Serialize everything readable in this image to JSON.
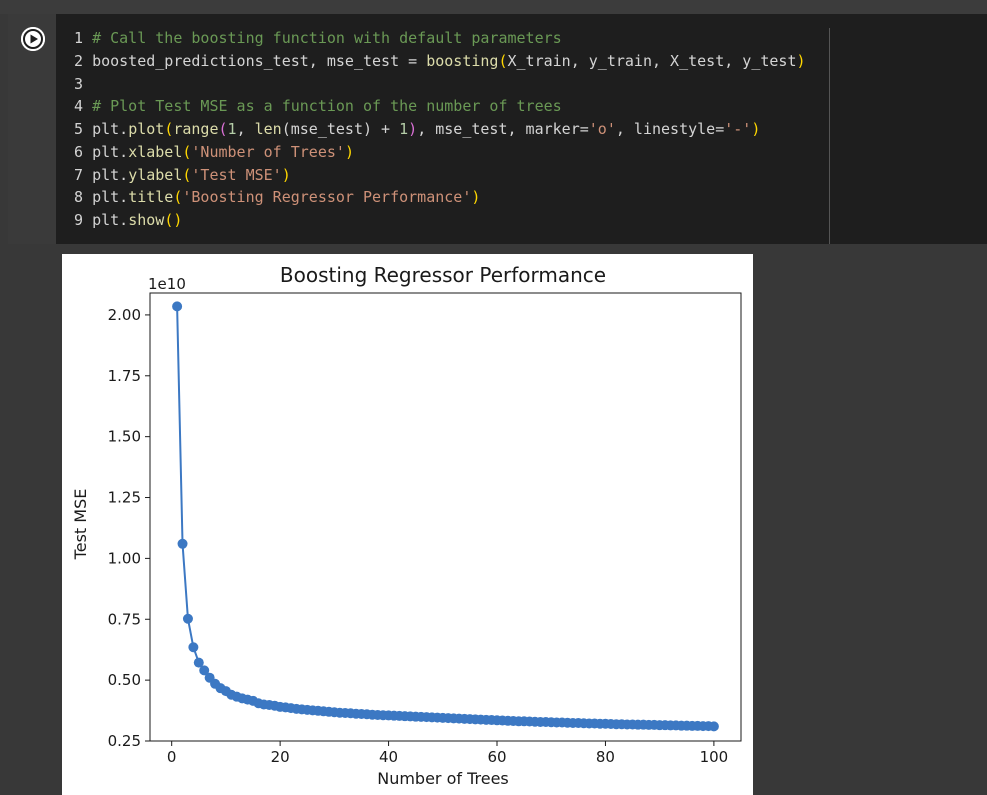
{
  "cell": {
    "run_button_label": "Run cell",
    "code_lines": [
      {
        "num": "1",
        "tokens": [
          {
            "t": "# Call the boosting function with default parameters",
            "c": "cm"
          }
        ]
      },
      {
        "num": "2",
        "tokens": [
          {
            "t": "boosted_predictions_test, mse_test = ",
            "c": ""
          },
          {
            "t": "boosting",
            "c": "fn"
          },
          {
            "t": "(",
            "c": "py"
          },
          {
            "t": "X_train, y_train, X_test, y_test",
            "c": ""
          },
          {
            "t": ")",
            "c": "py"
          }
        ]
      },
      {
        "num": "3",
        "tokens": []
      },
      {
        "num": "4",
        "tokens": [
          {
            "t": "# Plot Test MSE as a function of the number of trees",
            "c": "cm"
          }
        ]
      },
      {
        "num": "5",
        "tokens": [
          {
            "t": "plt.",
            "c": ""
          },
          {
            "t": "plot",
            "c": "fn"
          },
          {
            "t": "(",
            "c": "py"
          },
          {
            "t": "range",
            "c": "fn"
          },
          {
            "t": "(",
            "c": "pp"
          },
          {
            "t": "1",
            "c": "nu"
          },
          {
            "t": ", ",
            "c": ""
          },
          {
            "t": "len",
            "c": "fn"
          },
          {
            "t": "(mse_test)",
            "c": ""
          },
          {
            "t": " + ",
            "c": ""
          },
          {
            "t": "1",
            "c": "nu"
          },
          {
            "t": ")",
            "c": "pp"
          },
          {
            "t": ", mse_test, marker=",
            "c": ""
          },
          {
            "t": "'o'",
            "c": "st"
          },
          {
            "t": ", linestyle=",
            "c": ""
          },
          {
            "t": "'-'",
            "c": "st"
          },
          {
            "t": ")",
            "c": "py"
          }
        ]
      },
      {
        "num": "6",
        "tokens": [
          {
            "t": "plt.",
            "c": ""
          },
          {
            "t": "xlabel",
            "c": "fn"
          },
          {
            "t": "(",
            "c": "py"
          },
          {
            "t": "'Number of Trees'",
            "c": "st"
          },
          {
            "t": ")",
            "c": "py"
          }
        ]
      },
      {
        "num": "7",
        "tokens": [
          {
            "t": "plt.",
            "c": ""
          },
          {
            "t": "ylabel",
            "c": "fn"
          },
          {
            "t": "(",
            "c": "py"
          },
          {
            "t": "'Test MSE'",
            "c": "st"
          },
          {
            "t": ")",
            "c": "py"
          }
        ]
      },
      {
        "num": "8",
        "tokens": [
          {
            "t": "plt.",
            "c": ""
          },
          {
            "t": "title",
            "c": "fn"
          },
          {
            "t": "(",
            "c": "py"
          },
          {
            "t": "'Boosting Regressor Performance'",
            "c": "st"
          },
          {
            "t": ")",
            "c": "py"
          }
        ]
      },
      {
        "num": "9",
        "tokens": [
          {
            "t": "plt.",
            "c": ""
          },
          {
            "t": "show",
            "c": "fn"
          },
          {
            "t": "()",
            "c": "py"
          }
        ]
      }
    ]
  },
  "chart_data": {
    "type": "line",
    "title": "Boosting Regressor Performance",
    "xlabel": "Number of Trees",
    "ylabel": "Test MSE",
    "y_scale_label": "1e10",
    "xlim": [
      -4,
      105
    ],
    "ylim": [
      0.25,
      2.09
    ],
    "x_ticks": [
      0,
      20,
      40,
      60,
      80,
      100
    ],
    "x_tick_labels": [
      "0",
      "20",
      "40",
      "60",
      "80",
      "100"
    ],
    "y_ticks": [
      0.25,
      0.5,
      0.75,
      1.0,
      1.25,
      1.5,
      1.75,
      2.0
    ],
    "y_tick_labels": [
      "0.25",
      "0.50",
      "0.75",
      "1.00",
      "1.25",
      "1.50",
      "1.75",
      "2.00"
    ],
    "grid": false,
    "marker": "o",
    "line_color": "#3c78c3",
    "series": [
      {
        "x": [
          1,
          2,
          3,
          4,
          5,
          6,
          7,
          8,
          9,
          10,
          11,
          12,
          13,
          14,
          15,
          16,
          17,
          18,
          19,
          20,
          21,
          22,
          23,
          24,
          25,
          26,
          27,
          28,
          29,
          30,
          31,
          32,
          33,
          34,
          35,
          36,
          37,
          38,
          39,
          40,
          41,
          42,
          43,
          44,
          45,
          46,
          47,
          48,
          49,
          50,
          51,
          52,
          53,
          54,
          55,
          56,
          57,
          58,
          59,
          60,
          61,
          62,
          63,
          64,
          65,
          66,
          67,
          68,
          69,
          70,
          71,
          72,
          73,
          74,
          75,
          76,
          77,
          78,
          79,
          80,
          81,
          82,
          83,
          84,
          85,
          86,
          87,
          88,
          89,
          90,
          91,
          92,
          93,
          94,
          95,
          96,
          97,
          98,
          99,
          100
        ],
        "values": [
          2.035,
          1.06,
          0.752,
          0.635,
          0.572,
          0.54,
          0.51,
          0.485,
          0.467,
          0.455,
          0.44,
          0.432,
          0.425,
          0.42,
          0.415,
          0.405,
          0.4,
          0.398,
          0.395,
          0.39,
          0.388,
          0.385,
          0.382,
          0.38,
          0.378,
          0.376,
          0.374,
          0.372,
          0.37,
          0.368,
          0.366,
          0.365,
          0.364,
          0.362,
          0.361,
          0.36,
          0.358,
          0.357,
          0.356,
          0.355,
          0.354,
          0.353,
          0.352,
          0.351,
          0.35,
          0.349,
          0.348,
          0.347,
          0.346,
          0.345,
          0.344,
          0.343,
          0.342,
          0.341,
          0.34,
          0.339,
          0.338,
          0.337,
          0.336,
          0.335,
          0.334,
          0.333,
          0.332,
          0.331,
          0.331,
          0.33,
          0.329,
          0.328,
          0.328,
          0.327,
          0.326,
          0.326,
          0.325,
          0.324,
          0.324,
          0.323,
          0.322,
          0.322,
          0.321,
          0.321,
          0.32,
          0.319,
          0.319,
          0.318,
          0.318,
          0.317,
          0.317,
          0.316,
          0.316,
          0.315,
          0.315,
          0.314,
          0.314,
          0.313,
          0.313,
          0.312,
          0.312,
          0.311,
          0.311,
          0.31
        ]
      }
    ]
  }
}
